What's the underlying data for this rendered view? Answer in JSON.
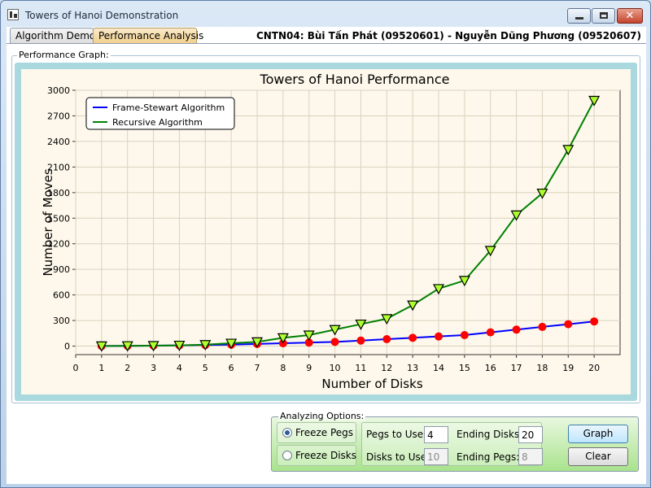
{
  "window": {
    "title": "Towers of Hanoi Demonstration",
    "close_glyph": "✕"
  },
  "tabs": [
    {
      "label": "Algorithm Demo",
      "selected": false
    },
    {
      "label": "Performance Analysis",
      "selected": true
    }
  ],
  "authors": "CNTN04: Bùi Tấn Phát (09520601) - Nguyễn Dũng Phương (09520607)",
  "graph_group_label": "Performance Graph:",
  "chart_data": {
    "type": "line",
    "title": "Towers of Hanoi Performance",
    "xlabel": "Number of Disks",
    "ylabel": "Number of Moves",
    "x": [
      1,
      2,
      3,
      4,
      5,
      6,
      7,
      8,
      9,
      10,
      11,
      12,
      13,
      14,
      15,
      16,
      17,
      18,
      19,
      20
    ],
    "x_ticks": [
      "0",
      "1",
      "2",
      "3",
      "4",
      "5",
      "6",
      "7",
      "8",
      "9",
      "10",
      "11",
      "12",
      "13",
      "14",
      "15",
      "16",
      "17",
      "18",
      "19",
      "20"
    ],
    "xlim": [
      0,
      21
    ],
    "ylim": [
      -100,
      3000
    ],
    "y_ticks": [
      0,
      300,
      600,
      900,
      1200,
      1500,
      1800,
      2100,
      2400,
      2700,
      3000
    ],
    "grid": true,
    "legend_position": "top-left",
    "series": [
      {
        "name": "Frame-Stewart Algorithm",
        "color": "#0000ff",
        "marker": "circle",
        "marker_color": "#ff0000",
        "values": [
          1,
          3,
          5,
          9,
          13,
          17,
          25,
          33,
          41,
          49,
          65,
          81,
          97,
          113,
          129,
          161,
          193,
          225,
          257,
          289
        ]
      },
      {
        "name": "Recursive Algorithm",
        "color": "#008000",
        "marker": "triangle-down",
        "marker_color": "#adff2f",
        "values": [
          1,
          3,
          5,
          9,
          17,
          33,
          49,
          97,
          129,
          193,
          257,
          321,
          481,
          673,
          769,
          1121,
          1537,
          1793,
          2305,
          2881
        ]
      }
    ]
  },
  "options": {
    "group_label": "Analyzing Options:",
    "freeze_pegs_label": "Freeze Pegs",
    "freeze_disks_label": "Freeze Disks",
    "freeze_pegs_selected": true,
    "pegs_to_use_label": "Pegs to Use:",
    "pegs_to_use_value": "4",
    "ending_disks_label": "Ending Disks:",
    "ending_disks_value": "20",
    "disks_to_use_label": "Disks to Use:",
    "disks_to_use_value": "10",
    "ending_pegs_label": "Ending Pegs:",
    "ending_pegs_value": "8",
    "graph_button_label": "Graph",
    "clear_button_label": "Clear"
  }
}
